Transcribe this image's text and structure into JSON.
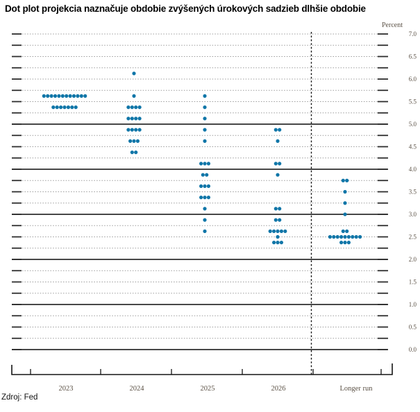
{
  "title": "Dot plot projekcia naznačuje obdobie zvýšených úrokových sadzieb dlhšie obdobie",
  "source": "Zdroj: Fed",
  "chart_data": {
    "type": "scatter",
    "subtype": "fed-dot-plot",
    "title": "Dot plot projekcia naznačuje obdobie zvýšených úrokových sadzieb dlhšie obdobie",
    "ylabel": "Percent",
    "source": "Zdroj: Fed",
    "categories": [
      "2023",
      "2024",
      "2025",
      "2026",
      "Longer run"
    ],
    "ylim": [
      0.0,
      7.0
    ],
    "grid_step": 0.25,
    "y_tick_step": 0.5,
    "y_tick_labels": [
      "7.0",
      "6.5",
      "6.0",
      "5.5",
      "5.0",
      "4.5",
      "4.0",
      "3.5",
      "3.0",
      "2.5",
      "2.0",
      "1.5",
      "1.0",
      "0.5",
      "0.0"
    ],
    "solid_gridlines_at": [
      0,
      1,
      2,
      3,
      4,
      5
    ],
    "separator_after_category": "2026",
    "legend": "none",
    "colors": {
      "dot": "#1076a8",
      "gridline": "#9b9b9b",
      "solid_line": "#2d2d2d",
      "label_text": "#5a5044"
    },
    "series": [
      {
        "name": "2023",
        "dots": [
          {
            "rate": 5.625,
            "count": 12
          },
          {
            "rate": 5.375,
            "count": 7
          }
        ]
      },
      {
        "name": "2024",
        "dots": [
          {
            "rate": 6.125,
            "count": 1
          },
          {
            "rate": 5.625,
            "count": 1
          },
          {
            "rate": 5.375,
            "count": 4
          },
          {
            "rate": 5.125,
            "count": 4
          },
          {
            "rate": 4.875,
            "count": 4
          },
          {
            "rate": 4.625,
            "count": 3
          },
          {
            "rate": 4.375,
            "count": 2
          }
        ]
      },
      {
        "name": "2025",
        "dots": [
          {
            "rate": 5.625,
            "count": 1
          },
          {
            "rate": 5.375,
            "count": 1
          },
          {
            "rate": 5.125,
            "count": 1
          },
          {
            "rate": 4.875,
            "count": 1
          },
          {
            "rate": 4.625,
            "count": 1
          },
          {
            "rate": 4.125,
            "count": 3
          },
          {
            "rate": 3.875,
            "count": 2
          },
          {
            "rate": 3.625,
            "count": 3
          },
          {
            "rate": 3.375,
            "count": 3
          },
          {
            "rate": 3.125,
            "count": 1
          },
          {
            "rate": 2.875,
            "count": 1
          },
          {
            "rate": 2.625,
            "count": 1
          }
        ]
      },
      {
        "name": "2026",
        "dots": [
          {
            "rate": 4.875,
            "count": 2
          },
          {
            "rate": 4.625,
            "count": 1
          },
          {
            "rate": 4.125,
            "count": 2
          },
          {
            "rate": 3.875,
            "count": 1
          },
          {
            "rate": 3.125,
            "count": 2
          },
          {
            "rate": 2.875,
            "count": 2
          },
          {
            "rate": 2.625,
            "count": 5
          },
          {
            "rate": 2.5,
            "count": 1
          },
          {
            "rate": 2.375,
            "count": 3
          }
        ]
      },
      {
        "name": "Longer run",
        "dots": [
          {
            "rate": 3.75,
            "count": 2
          },
          {
            "rate": 3.5,
            "count": 1
          },
          {
            "rate": 3.25,
            "count": 1
          },
          {
            "rate": 3.0,
            "count": 1
          },
          {
            "rate": 2.625,
            "count": 2
          },
          {
            "rate": 2.5,
            "count": 9
          },
          {
            "rate": 2.375,
            "count": 3
          }
        ]
      }
    ]
  }
}
